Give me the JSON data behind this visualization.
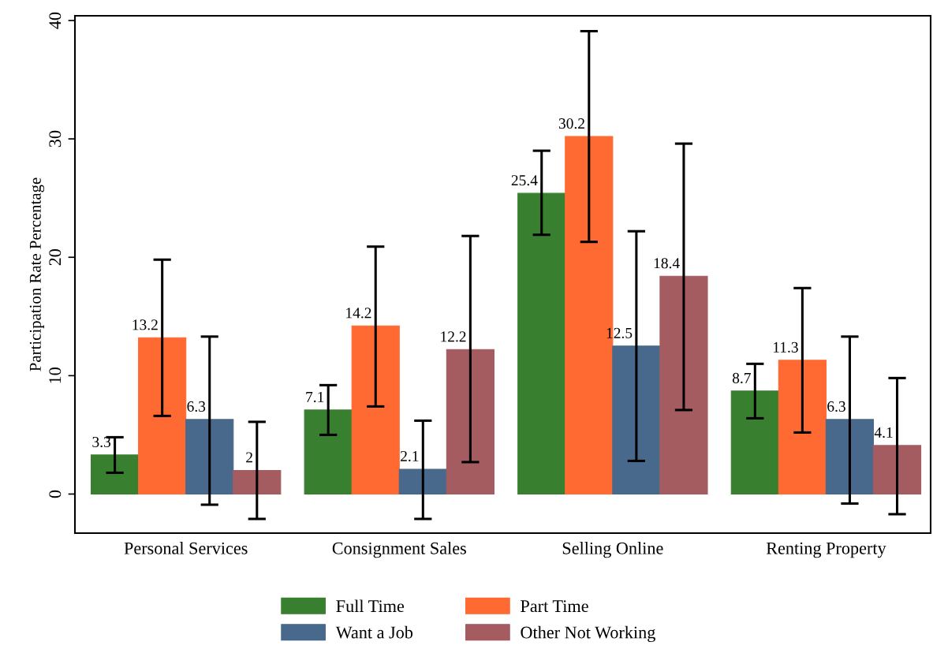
{
  "chart_data": {
    "type": "bar",
    "ylabel": "Participation Rate Percentage",
    "categories": [
      "Personal Services",
      "Consignment Sales",
      "Selling Online",
      "Renting Property"
    ],
    "series": [
      {
        "name": "Full Time",
        "color": "#38802f",
        "values": [
          3.3,
          7.1,
          25.4,
          8.7
        ],
        "errors": [
          [
            1.8,
            4.8
          ],
          [
            5.0,
            9.2
          ],
          [
            21.9,
            29.0
          ],
          [
            6.4,
            11.0
          ]
        ]
      },
      {
        "name": "Part Time",
        "color": "#ff6a33",
        "values": [
          13.2,
          14.2,
          30.2,
          11.3
        ],
        "errors": [
          [
            6.6,
            19.8
          ],
          [
            7.4,
            20.9
          ],
          [
            21.3,
            39.1
          ],
          [
            5.2,
            17.4
          ]
        ]
      },
      {
        "name": "Want a Job",
        "color": "#48698b",
        "values": [
          6.3,
          2.1,
          12.5,
          6.3
        ],
        "errors": [
          [
            -0.9,
            13.3
          ],
          [
            -2.1,
            6.2
          ],
          [
            2.8,
            22.2
          ],
          [
            -0.8,
            13.3
          ]
        ]
      },
      {
        "name": "Other Not Working",
        "color": "#a45c60",
        "values": [
          2,
          12.2,
          18.4,
          4.1
        ],
        "errors": [
          [
            -2.1,
            6.1
          ],
          [
            2.7,
            21.8
          ],
          [
            7.1,
            29.6
          ],
          [
            -1.7,
            9.8
          ]
        ]
      }
    ],
    "ylim": [
      -3.3,
      40.4
    ],
    "yticks": [
      0,
      10,
      20,
      30,
      40
    ],
    "data_labels": true,
    "grid": false,
    "legend": "bottom"
  }
}
